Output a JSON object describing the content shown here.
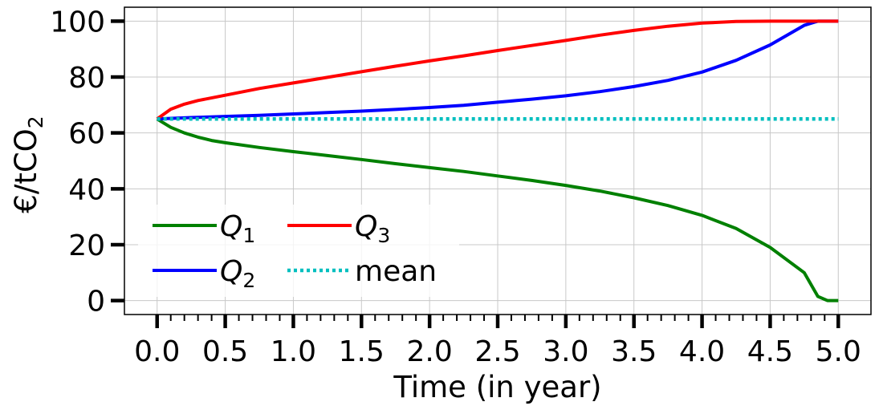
{
  "chart_data": {
    "type": "line",
    "xlabel": "Time (in year)",
    "ylabel": "€/tCO",
    "ylabel_sub": "2",
    "xlim": [
      -0.24,
      5.24
    ],
    "ylim": [
      -5,
      105
    ],
    "x_ticks": [
      0.0,
      0.5,
      1.0,
      1.5,
      2.0,
      2.5,
      3.0,
      3.5,
      4.0,
      4.5,
      5.0
    ],
    "x_tick_labels": [
      "0.0",
      "0.5",
      "1.0",
      "1.5",
      "2.0",
      "2.5",
      "3.0",
      "3.5",
      "4.0",
      "4.5",
      "5.0"
    ],
    "x_minor_step": 0.1,
    "y_ticks": [
      0,
      20,
      40,
      60,
      80,
      100
    ],
    "y_tick_labels": [
      "0",
      "20",
      "40",
      "60",
      "80",
      "100"
    ],
    "grid": true,
    "legend_placement": "lower-left",
    "series": [
      {
        "name": "Q",
        "name_sub": "1",
        "color": "#008000",
        "style": "solid",
        "x": [
          0.0,
          0.1,
          0.2,
          0.3,
          0.4,
          0.5,
          0.75,
          1.0,
          1.25,
          1.5,
          1.75,
          2.0,
          2.25,
          2.5,
          2.75,
          3.0,
          3.25,
          3.5,
          3.75,
          4.0,
          4.25,
          4.5,
          4.75,
          4.85,
          4.92,
          5.0
        ],
        "y": [
          65.0,
          62.0,
          60.0,
          58.5,
          57.3,
          56.5,
          54.8,
          53.3,
          51.9,
          50.5,
          49.0,
          47.6,
          46.2,
          44.6,
          43.0,
          41.2,
          39.2,
          36.8,
          34.0,
          30.5,
          25.8,
          19.0,
          10.0,
          1.5,
          0.0,
          0.0
        ]
      },
      {
        "name": "Q",
        "name_sub": "2",
        "color": "#0000ff",
        "style": "solid",
        "x": [
          0.0,
          0.25,
          0.5,
          0.75,
          1.0,
          1.25,
          1.5,
          1.75,
          2.0,
          2.25,
          2.5,
          2.75,
          3.0,
          3.25,
          3.5,
          3.75,
          4.0,
          4.25,
          4.5,
          4.75,
          4.85,
          5.0
        ],
        "y": [
          65.0,
          65.5,
          65.9,
          66.3,
          66.8,
          67.3,
          67.8,
          68.4,
          69.1,
          69.9,
          71.0,
          72.1,
          73.3,
          74.8,
          76.6,
          78.8,
          81.8,
          86.0,
          91.5,
          98.5,
          100.0,
          100.0
        ]
      },
      {
        "name": "Q",
        "name_sub": "3",
        "color": "#ff0000",
        "style": "solid",
        "x": [
          0.0,
          0.1,
          0.2,
          0.3,
          0.5,
          0.75,
          1.0,
          1.25,
          1.5,
          1.75,
          2.0,
          2.25,
          2.5,
          2.75,
          3.0,
          3.25,
          3.5,
          3.75,
          4.0,
          4.25,
          4.5,
          4.75,
          5.0
        ],
        "y": [
          65.0,
          68.5,
          70.3,
          71.6,
          73.5,
          75.9,
          77.9,
          79.9,
          81.9,
          83.9,
          85.8,
          87.6,
          89.5,
          91.3,
          93.1,
          95.0,
          96.7,
          98.2,
          99.3,
          99.9,
          100.0,
          100.0,
          100.0
        ]
      },
      {
        "name": "mean",
        "name_sub": "",
        "color": "#00bfbf",
        "style": "dotted",
        "x": [
          0.0,
          5.0
        ],
        "y": [
          65.0,
          65.0
        ]
      }
    ]
  }
}
